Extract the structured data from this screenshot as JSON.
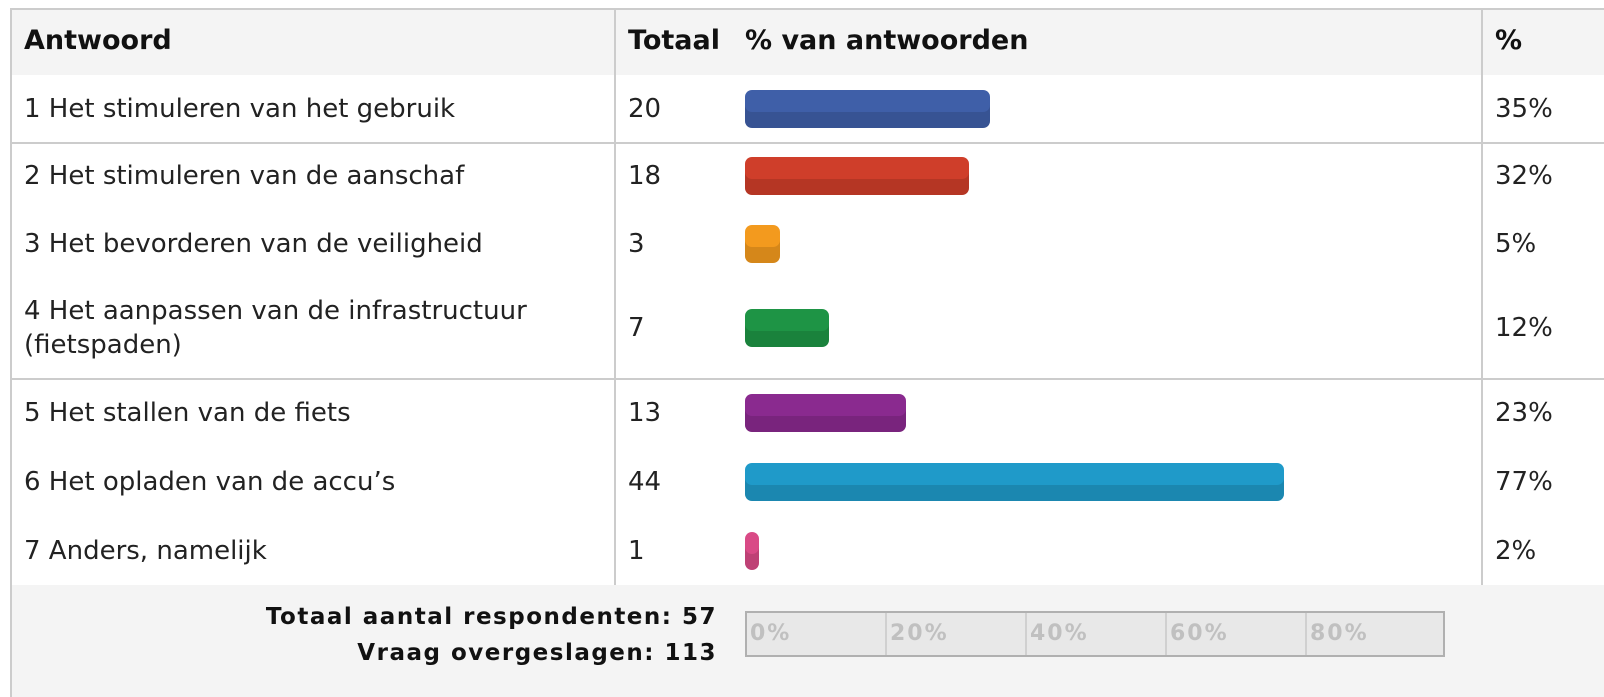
{
  "header": {
    "answer": "Antwoord",
    "total": "Totaal",
    "bar": "% van antwoorden",
    "percent": "%"
  },
  "rows": [
    {
      "answer": "1 Het stimuleren van het gebruik",
      "total": "20",
      "percent": "35%",
      "color": "#3f5fa8"
    },
    {
      "answer": "2 Het stimuleren van de aanschaf",
      "total": "18",
      "percent": "32%",
      "color": "#cf3e2a"
    },
    {
      "answer": "3 Het bevorderen van de veiligheid",
      "total": "3",
      "percent": "5%",
      "color": "#f39a1e"
    },
    {
      "answer": "4 Het aanpassen van de infrastructuur (fietspaden)",
      "total": "7",
      "percent": "12%",
      "color": "#1e9445"
    },
    {
      "answer": "5 Het stallen van de fiets",
      "total": "13",
      "percent": "23%",
      "color": "#8a2a8f"
    },
    {
      "answer": "6 Het opladen van de accu’s",
      "total": "44",
      "percent": "77%",
      "color": "#1f9ac9"
    },
    {
      "answer": "7 Anders, namelijk",
      "total": "1",
      "percent": "2%",
      "color": "#d94a86"
    }
  ],
  "footer": {
    "respondents": "Totaal aantal respondenten: 57",
    "skipped": "Vraag overgeslagen: 113"
  },
  "scale": {
    "ticks": [
      "0%",
      "20%",
      "40%",
      "60%",
      "80%"
    ]
  }
}
